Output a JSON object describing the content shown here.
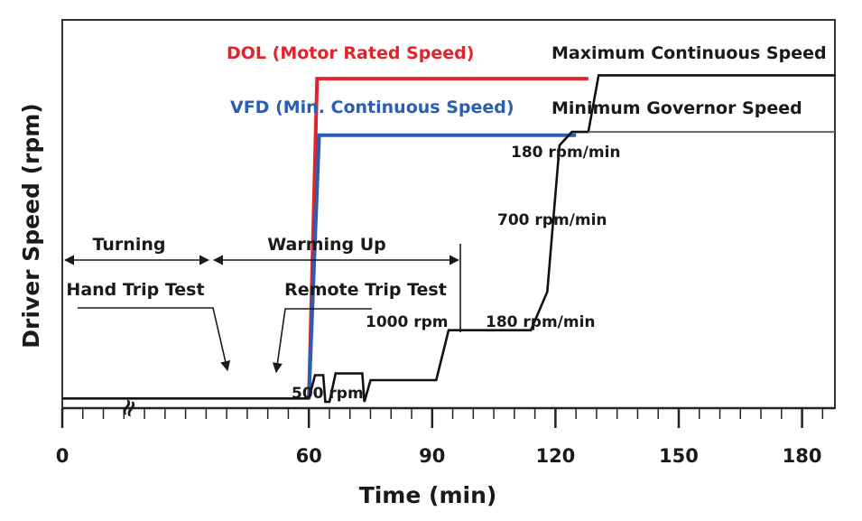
{
  "chart_data": {
    "type": "line",
    "title": "",
    "xlabel": "Time (min)",
    "ylabel": "Driver Speed (rpm)",
    "xlim": [
      0,
      188
    ],
    "ylim": [
      0,
      100
    ],
    "xticks": [
      0,
      60,
      90,
      120,
      150,
      180
    ],
    "series": [
      {
        "name": "DOL (Motor Rated Speed)",
        "color": "#e0242b",
        "points": [
          [
            60,
            1
          ],
          [
            62,
            97
          ],
          [
            97,
            97
          ],
          [
            128,
            97
          ]
        ]
      },
      {
        "name": "VFD (Min. Continuous Speed)",
        "color": "#2b5db3",
        "points": [
          [
            60,
            1
          ],
          [
            62.5,
            80
          ],
          [
            100,
            80
          ],
          [
            125,
            80
          ]
        ]
      },
      {
        "name": "Driver speed profile",
        "color": "#111111",
        "points": [
          [
            0,
            1
          ],
          [
            60,
            1
          ],
          [
            61.5,
            8
          ],
          [
            63.5,
            8
          ],
          [
            64,
            0
          ],
          [
            65,
            0
          ],
          [
            66.5,
            8.5
          ],
          [
            73,
            8.5
          ],
          [
            73.5,
            0
          ],
          [
            75,
            6.5
          ],
          [
            91,
            6.5
          ],
          [
            94,
            21.5
          ],
          [
            114,
            21.5
          ],
          [
            118,
            33
          ],
          [
            121,
            77
          ],
          [
            124,
            81
          ],
          [
            128,
            81
          ],
          [
            130.5,
            98
          ],
          [
            188,
            98
          ]
        ]
      }
    ],
    "reference_lines": [
      {
        "name": "Minimum Governor Speed",
        "y": 81,
        "x_from": 128,
        "x_to": 188
      }
    ],
    "annotations": {
      "dol": "DOL (Motor Rated Speed)",
      "vfd": "VFD (Min. Continuous Speed)",
      "max_cont": "Maximum Continuous Speed",
      "min_gov": "Minimum Governor Speed",
      "rate_180_upper": "180 rpm/min",
      "rate_700": "700 rpm/min",
      "rate_180_lower": "180 rpm/min",
      "rpm_1000": "1000 rpm",
      "rpm_500": "500 rpm",
      "turning": "Turning",
      "warming_up": "Warming Up",
      "hand_trip": "Hand Trip Test",
      "remote_trip": "Remote Trip Test",
      "axis_break": "≈"
    }
  }
}
